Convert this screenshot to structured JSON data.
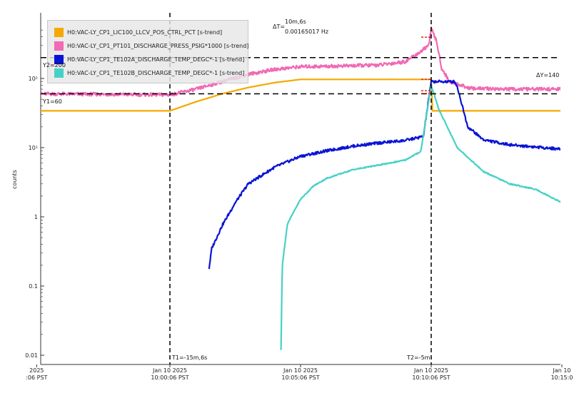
{
  "chart_data": {
    "type": "line",
    "y_scale": "log",
    "ylim": [
      0.01,
      500
    ],
    "ylabel": "counts",
    "y_ticks": [
      {
        "label": "0.01",
        "value": 0.01
      },
      {
        "label": "0.1",
        "value": 0.1
      },
      {
        "label": "1",
        "value": 1
      },
      {
        "label": "10¹",
        "value": 10
      },
      {
        "label": "10²",
        "value": 100
      }
    ],
    "x_ticks": [
      {
        "date": "2025",
        "time": ":06 PST",
        "minute": -5.1
      },
      {
        "date": "Jan 10 2025",
        "time": "10:00:06 PST",
        "minute": 0
      },
      {
        "date": "Jan 10 2025",
        "time": "10:05:06 PST",
        "minute": 5
      },
      {
        "date": "Jan 10 2025",
        "time": "10:10:06 PST",
        "minute": 10
      },
      {
        "date": "Jan 10",
        "time": "10:15:0",
        "minute": 15
      }
    ],
    "series": [
      {
        "name": "H0:VAC-LY_CP1_LIC100_LLCV_POS_CTRL_PCT [s-trend]",
        "color": "#f5a800",
        "points": [
          [
            -5,
            34
          ],
          [
            0,
            34
          ],
          [
            1,
            46
          ],
          [
            2,
            60
          ],
          [
            3,
            74
          ],
          [
            4,
            87
          ],
          [
            5,
            97
          ],
          [
            10,
            97
          ],
          [
            10.05,
            34
          ],
          [
            15,
            34
          ]
        ]
      },
      {
        "name": "H0:VAC-LY_CP1_PT101_DISCHARGE_PRESS_PSIG*1000 [s-trend]",
        "color": "#f06ab4",
        "points": [
          [
            -5,
            60
          ],
          [
            0,
            58
          ],
          [
            1,
            70
          ],
          [
            2,
            90
          ],
          [
            3,
            115
          ],
          [
            4,
            135
          ],
          [
            5,
            148
          ],
          [
            6,
            150
          ],
          [
            7,
            153
          ],
          [
            8,
            156
          ],
          [
            9,
            175
          ],
          [
            9.5,
            230
          ],
          [
            9.9,
            300
          ],
          [
            10.0,
            520
          ],
          [
            10.2,
            350
          ],
          [
            10.4,
            140
          ],
          [
            10.7,
            90
          ],
          [
            11.5,
            72
          ],
          [
            13,
            70
          ],
          [
            15,
            70
          ]
        ]
      },
      {
        "name": "H0:VAC-LY_CP1_TE102A_DISCHARGE_TEMP_DEGC*-1 [s-trend]",
        "color": "#0a14d4",
        "points": [
          [
            1.5,
            0.18
          ],
          [
            1.6,
            0.35
          ],
          [
            2.0,
            0.75
          ],
          [
            2.5,
            1.6
          ],
          [
            3,
            3.0
          ],
          [
            4,
            5.2
          ],
          [
            5,
            7.5
          ],
          [
            6,
            9.0
          ],
          [
            7,
            10.5
          ],
          [
            8,
            11.7
          ],
          [
            9,
            12.7
          ],
          [
            9.7,
            14.5
          ],
          [
            10.0,
            90
          ],
          [
            10.9,
            90
          ],
          [
            11.0,
            75
          ],
          [
            11.4,
            20
          ],
          [
            12,
            13
          ],
          [
            13,
            11
          ],
          [
            15,
            9.5
          ]
        ]
      },
      {
        "name": "H0:VAC-LY_CP1_TE102B_DISCHARGE_TEMP_DEGC*-1 [s-trend]",
        "color": "#47d1c6",
        "points": [
          [
            4.25,
            0.012
          ],
          [
            4.3,
            0.2
          ],
          [
            4.5,
            0.8
          ],
          [
            5,
            1.8
          ],
          [
            5.5,
            2.8
          ],
          [
            6,
            3.6
          ],
          [
            7,
            4.8
          ],
          [
            8,
            5.6
          ],
          [
            9,
            6.6
          ],
          [
            9.6,
            8.8
          ],
          [
            10.0,
            80
          ],
          [
            10.3,
            35
          ],
          [
            11,
            10
          ],
          [
            12,
            4.5
          ],
          [
            13,
            3.0
          ],
          [
            14,
            2.5
          ],
          [
            15,
            1.6
          ]
        ]
      }
    ],
    "cursors": {
      "t1_label": "T1=-15m,6s",
      "t2_label": "T2=-5m",
      "y1_label": "Y1=60",
      "y2_label": "Y2=200",
      "delta_t_label": "ΔT=",
      "delta_t_value": "10m,6s",
      "delta_t_freq": "0.00165017 Hz",
      "delta_y_label": "ΔY=140",
      "t1_minute": 0,
      "t2_minute": 10,
      "y1_value": 60,
      "y2_value": 200
    }
  }
}
